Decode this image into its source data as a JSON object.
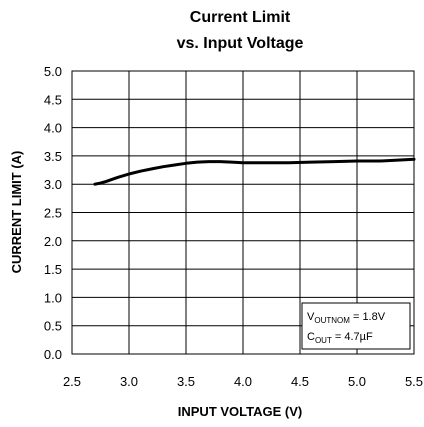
{
  "chart_data": {
    "type": "line",
    "title_lines": [
      "Current Limit",
      "vs. Input Voltage"
    ],
    "xlabel": "INPUT VOLTAGE (V)",
    "ylabel": "CURRENT LIMIT (A)",
    "xlim": [
      2.5,
      5.5
    ],
    "ylim": [
      0.0,
      5.0
    ],
    "x_ticks": [
      "2.5",
      "3.0",
      "3.5",
      "4.0",
      "4.5",
      "5.0",
      "5.5"
    ],
    "y_ticks": [
      "0.0",
      "0.5",
      "1.0",
      "1.5",
      "2.0",
      "2.5",
      "3.0",
      "3.5",
      "4.0",
      "4.5",
      "5.0"
    ],
    "grid": true,
    "series": [
      {
        "x": [
          2.7,
          2.75,
          2.8,
          2.9,
          3.0,
          3.1,
          3.2,
          3.3,
          3.4,
          3.5,
          3.6,
          3.7,
          3.8,
          3.9,
          4.0,
          4.2,
          4.4,
          4.6,
          4.8,
          5.0,
          5.2,
          5.4,
          5.5
        ],
        "y": [
          3.0,
          3.02,
          3.05,
          3.12,
          3.18,
          3.23,
          3.27,
          3.31,
          3.34,
          3.37,
          3.39,
          3.4,
          3.4,
          3.39,
          3.38,
          3.38,
          3.38,
          3.39,
          3.4,
          3.41,
          3.41,
          3.43,
          3.44
        ],
        "color": "#000000"
      }
    ],
    "annotation": {
      "line1_main": "V",
      "line1_sub": "OUTNOM",
      "line1_rest": " = 1.8V",
      "line2_main": "C",
      "line2_sub": "OUT",
      "line2_rest": " = 4.7µF"
    }
  }
}
